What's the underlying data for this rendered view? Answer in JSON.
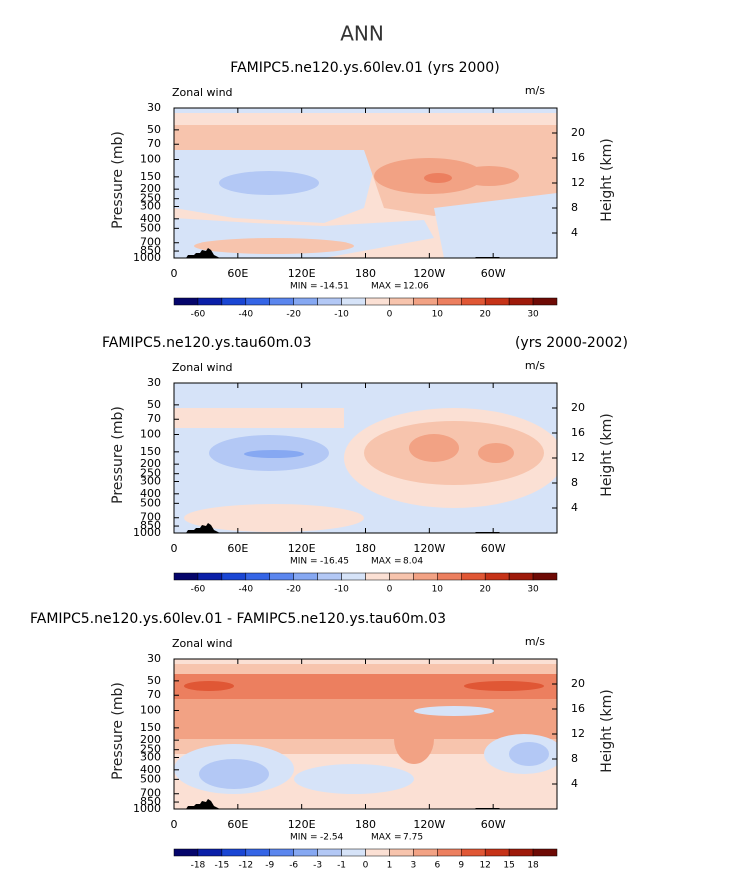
{
  "title": "ANN",
  "chart_data": [
    {
      "type": "contour",
      "title": "FAMIPC5.ne120.ys.60lev.01 (yrs 2000)",
      "left_label": "Zonal wind",
      "right_label": "m/s",
      "ylabel": "Pressure (mb)",
      "y2label": "Height (km)",
      "ylog": true,
      "xlim": [
        0,
        360
      ],
      "xticks": [
        0,
        {
          "value": 60,
          "label": "60E"
        },
        {
          "value": 120,
          "label": "120E"
        },
        180,
        {
          "value": 240,
          "label": "120W"
        },
        {
          "value": 300,
          "label": "60W"
        }
      ],
      "ylim": [
        1000,
        30
      ],
      "yticks": [
        30,
        50,
        70,
        100,
        150,
        200,
        250,
        300,
        400,
        500,
        700,
        850,
        1000
      ],
      "y2lim": [
        0,
        24
      ],
      "y2ticks": [
        4,
        8,
        12,
        16,
        20
      ],
      "min_label": "MIN =",
      "min": -14.51,
      "max_label": "MAX =",
      "max": 12.06,
      "colors": [
        "#05056b",
        "#0a1fa8",
        "#1a46d4",
        "#3565e6",
        "#5b86ee",
        "#86a8f2",
        "#b3c8f5",
        "#d6e3f8",
        "#fbe0d4",
        "#f7c4ad",
        "#f2a284",
        "#ec7f5f",
        "#e05735",
        "#c63318",
        "#9e1a0a",
        "#6e0a05"
      ],
      "levels": [
        -60,
        null,
        -40,
        null,
        -20,
        null,
        -10,
        null,
        0,
        null,
        10,
        null,
        20,
        null,
        30
      ]
    },
    {
      "type": "contour",
      "title": "FAMIPC5.ne120.ys.tau60m.03",
      "title_right": "(yrs 2000-2002)",
      "left_label": "Zonal wind",
      "right_label": "m/s",
      "ylabel": "Pressure (mb)",
      "y2label": "Height (km)",
      "ylog": true,
      "xlim": [
        0,
        360
      ],
      "xticks": [
        0,
        {
          "value": 60,
          "label": "60E"
        },
        {
          "value": 120,
          "label": "120E"
        },
        180,
        {
          "value": 240,
          "label": "120W"
        },
        {
          "value": 300,
          "label": "60W"
        }
      ],
      "ylim": [
        1000,
        30
      ],
      "yticks": [
        30,
        50,
        70,
        100,
        150,
        200,
        250,
        300,
        400,
        500,
        700,
        850,
        1000
      ],
      "y2lim": [
        0,
        24
      ],
      "y2ticks": [
        4,
        8,
        12,
        16,
        20
      ],
      "min_label": "MIN =",
      "min": -16.45,
      "max_label": "MAX =",
      "max": 8.04,
      "colors": [
        "#05056b",
        "#0a1fa8",
        "#1a46d4",
        "#3565e6",
        "#5b86ee",
        "#86a8f2",
        "#b3c8f5",
        "#d6e3f8",
        "#fbe0d4",
        "#f7c4ad",
        "#f2a284",
        "#ec7f5f",
        "#e05735",
        "#c63318",
        "#9e1a0a",
        "#6e0a05"
      ],
      "levels": [
        -60,
        null,
        -40,
        null,
        -20,
        null,
        -10,
        null,
        0,
        null,
        10,
        null,
        20,
        null,
        30
      ]
    },
    {
      "type": "contour",
      "title": "FAMIPC5.ne120.ys.60lev.01 - FAMIPC5.ne120.ys.tau60m.03",
      "left_label": "Zonal wind",
      "right_label": "m/s",
      "ylabel": "Pressure (mb)",
      "y2label": "Height (km)",
      "ylog": true,
      "xlim": [
        0,
        360
      ],
      "xticks": [
        0,
        {
          "value": 60,
          "label": "60E"
        },
        {
          "value": 120,
          "label": "120E"
        },
        180,
        {
          "value": 240,
          "label": "120W"
        },
        {
          "value": 300,
          "label": "60W"
        }
      ],
      "ylim": [
        1000,
        30
      ],
      "yticks": [
        30,
        50,
        70,
        100,
        150,
        200,
        250,
        300,
        400,
        500,
        700,
        850,
        1000
      ],
      "y2lim": [
        0,
        24
      ],
      "y2ticks": [
        4,
        8,
        12,
        16,
        20
      ],
      "min_label": "MIN =",
      "min": -2.54,
      "max_label": "MAX =",
      "max": 7.75,
      "colors": [
        "#05056b",
        "#0a1fa8",
        "#1a46d4",
        "#3565e6",
        "#5b86ee",
        "#86a8f2",
        "#b3c8f5",
        "#d6e3f8",
        "#fbe0d4",
        "#f7c4ad",
        "#f2a284",
        "#ec7f5f",
        "#e05735",
        "#c63318",
        "#9e1a0a",
        "#6e0a05"
      ],
      "levels": [
        -18,
        -15,
        -12,
        -9,
        -6,
        -3,
        -1,
        0,
        1,
        3,
        6,
        9,
        12,
        15,
        18
      ]
    }
  ]
}
